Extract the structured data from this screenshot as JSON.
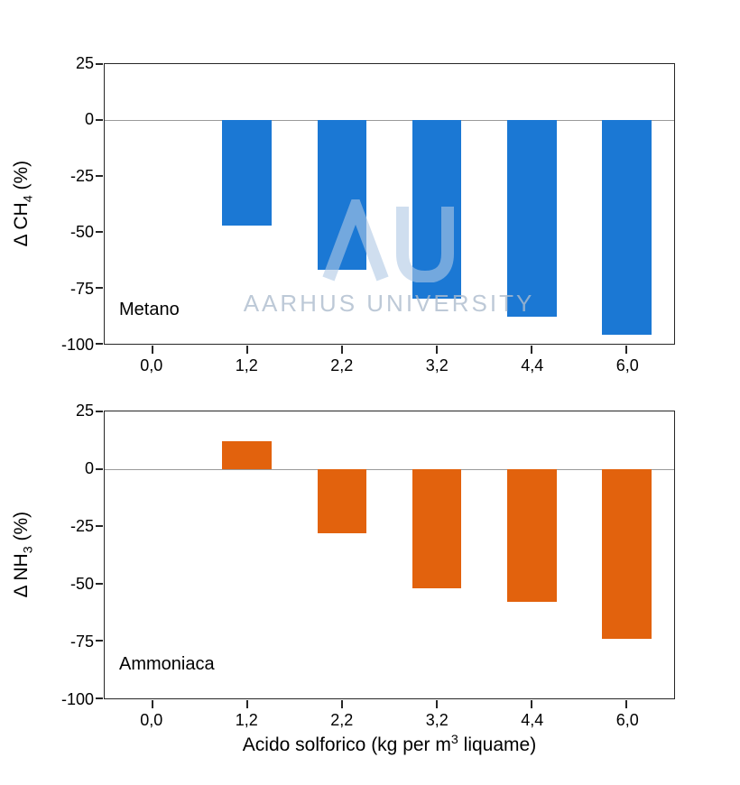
{
  "figure": {
    "background": "#ffffff",
    "watermark_text": "AARHUS UNIVERSITY"
  },
  "xaxis_title": {
    "prefix": "Acido solforico (kg per m",
    "sup": "3",
    "suffix": " liquame)"
  },
  "chart_data": [
    {
      "type": "bar",
      "annotation": "Metano",
      "series_name": "metano",
      "ylabel": {
        "prefix": "Δ CH",
        "sub": "4",
        "suffix": " (%)"
      },
      "categories": [
        "0,0",
        "1,2",
        "2,2",
        "3,2",
        "4,4",
        "6,0"
      ],
      "values": [
        0,
        -47,
        -67,
        -80,
        -88,
        -96
      ],
      "bar_color": "#1b78d4",
      "ylim": [
        -100,
        25
      ],
      "yticks": [
        25,
        0,
        -25,
        -50,
        -75,
        -100
      ],
      "zero_line": true,
      "grid": false,
      "legend": "none"
    },
    {
      "type": "bar",
      "annotation": "Ammoniaca",
      "series_name": "ammoniaca",
      "ylabel": {
        "prefix": "Δ NH",
        "sub": "3",
        "suffix": " (%)"
      },
      "categories": [
        "0,0",
        "1,2",
        "2,2",
        "3,2",
        "4,4",
        "6,0"
      ],
      "values": [
        0,
        12,
        -28,
        -52,
        -58,
        -74
      ],
      "bar_color": "#e2620d",
      "ylim": [
        -100,
        25
      ],
      "yticks": [
        25,
        0,
        -25,
        -50,
        -75,
        -100
      ],
      "zero_line": true,
      "grid": false,
      "legend": "none",
      "xlabel": "Acido solforico (kg per m³ liquame)"
    }
  ]
}
